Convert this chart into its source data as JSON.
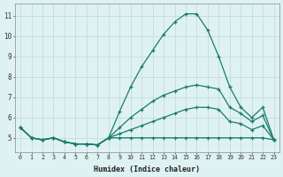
{
  "xlabel": "Humidex (Indice chaleur)",
  "bg_color": "#dff2f2",
  "grid_color": "#c0d8d8",
  "line_color": "#1a7a6e",
  "xlim": [
    -0.5,
    23.5
  ],
  "ylim": [
    4.3,
    11.6
  ],
  "xticks": [
    0,
    1,
    2,
    3,
    4,
    5,
    6,
    7,
    8,
    9,
    10,
    11,
    12,
    13,
    14,
    15,
    16,
    17,
    18,
    19,
    20,
    21,
    22,
    23
  ],
  "yticks": [
    5,
    6,
    7,
    8,
    9,
    10,
    11
  ],
  "line1_y": [
    5.5,
    5.0,
    4.9,
    5.0,
    4.8,
    4.7,
    4.7,
    4.65,
    5.0,
    6.3,
    7.5,
    8.5,
    9.3,
    10.1,
    10.7,
    11.1,
    11.1,
    10.3,
    9.0,
    7.5,
    6.5,
    6.0,
    6.5,
    4.9
  ],
  "line2_y": [
    5.5,
    5.0,
    4.9,
    5.0,
    4.8,
    4.7,
    4.7,
    4.65,
    5.0,
    5.5,
    6.0,
    6.4,
    6.8,
    7.1,
    7.3,
    7.5,
    7.6,
    7.5,
    7.4,
    6.5,
    6.2,
    5.8,
    6.1,
    4.9
  ],
  "line3_y": [
    5.5,
    5.0,
    4.9,
    5.0,
    4.8,
    4.7,
    4.7,
    4.65,
    5.0,
    5.2,
    5.4,
    5.6,
    5.8,
    6.0,
    6.2,
    6.4,
    6.5,
    6.5,
    6.4,
    5.8,
    5.7,
    5.4,
    5.6,
    4.9
  ],
  "line4_y": [
    5.5,
    5.0,
    4.9,
    5.0,
    4.8,
    4.7,
    4.7,
    4.65,
    5.0,
    5.0,
    5.0,
    5.0,
    5.0,
    5.0,
    5.0,
    5.0,
    5.0,
    5.0,
    5.0,
    5.0,
    5.0,
    5.0,
    5.0,
    4.9
  ]
}
